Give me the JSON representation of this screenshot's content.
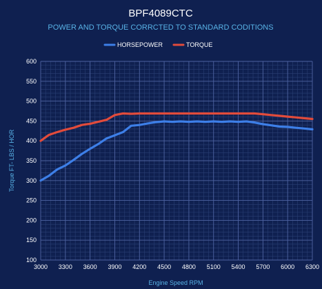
{
  "chart_data": {
    "type": "line",
    "title": "BPF4089CTC",
    "subtitle": "POWER AND TORQUE CORRCTED TO STANDARD CODITIONS",
    "xlabel": "Engine Speed RPM",
    "ylabel": "Torque FT- LBS / HOR",
    "xlim": [
      3000,
      6300
    ],
    "ylim": [
      100,
      600
    ],
    "x_ticks": [
      3000,
      3300,
      3600,
      3900,
      4200,
      4500,
      4800,
      5100,
      5400,
      5700,
      6000,
      6300
    ],
    "x_tick_labels": [
      "3000",
      "3300",
      "3600",
      "3900",
      "4200",
      "4500",
      "4800",
      "5100",
      "5400",
      "5700",
      "6000",
      "6300"
    ],
    "y_ticks": [
      100,
      150,
      200,
      250,
      300,
      350,
      400,
      450,
      500,
      550,
      600
    ],
    "y_tick_labels": [
      "100",
      "150",
      "200",
      "250",
      "300",
      "350",
      "400",
      "450",
      "500",
      "550",
      "600"
    ],
    "grid": true,
    "legend_position": "top-center",
    "series": [
      {
        "name": "HORSEPOWER",
        "color": "#3d7fe8",
        "x": [
          3000,
          3100,
          3200,
          3300,
          3400,
          3500,
          3600,
          3700,
          3800,
          3900,
          4000,
          4100,
          4200,
          4300,
          4400,
          4500,
          4600,
          4700,
          4800,
          4900,
          5000,
          5100,
          5200,
          5300,
          5400,
          5500,
          5600,
          5700,
          5800,
          5900,
          6000,
          6100,
          6200,
          6300
        ],
        "values": [
          300,
          312,
          328,
          338,
          352,
          367,
          380,
          392,
          406,
          414,
          422,
          438,
          440,
          444,
          447,
          449,
          448,
          449,
          448,
          449,
          448,
          449,
          448,
          449,
          448,
          449,
          446,
          442,
          439,
          436,
          435,
          433,
          431,
          429
        ]
      },
      {
        "name": "TORQUE",
        "color": "#e24b3b",
        "x": [
          3000,
          3100,
          3200,
          3300,
          3400,
          3500,
          3600,
          3700,
          3800,
          3900,
          4000,
          4100,
          4200,
          4300,
          4400,
          4500,
          4600,
          4700,
          4800,
          4900,
          5000,
          5100,
          5200,
          5300,
          5400,
          5500,
          5600,
          5700,
          5800,
          5900,
          6000,
          6100,
          6200,
          6300
        ],
        "values": [
          400,
          415,
          422,
          428,
          433,
          440,
          443,
          448,
          453,
          465,
          469,
          468,
          469,
          469,
          469,
          469,
          469,
          469,
          469,
          469,
          469,
          469,
          469,
          469,
          469,
          469,
          469,
          467,
          465,
          463,
          461,
          459,
          457,
          455
        ]
      }
    ]
  }
}
